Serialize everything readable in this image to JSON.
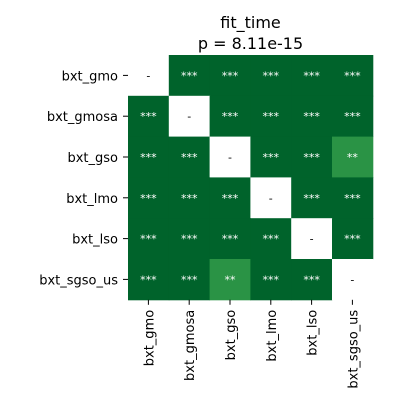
{
  "chart_data": {
    "type": "heatmap",
    "title": "fit_time",
    "subtitle": "p = 8.11e-15",
    "rows": [
      "bxt_gmo",
      "bxt_gmosa",
      "bxt_gso",
      "bxt_lmo",
      "bxt_lso",
      "bxt_sgso_us"
    ],
    "columns": [
      "bxt_gmo",
      "bxt_gmosa",
      "bxt_gso",
      "bxt_lmo",
      "bxt_lso",
      "bxt_sgso_us"
    ],
    "cells": [
      [
        "-",
        "***",
        "***",
        "***",
        "***",
        "***"
      ],
      [
        "***",
        "-",
        "***",
        "***",
        "***",
        "***"
      ],
      [
        "***",
        "***",
        "-",
        "***",
        "***",
        "**"
      ],
      [
        "***",
        "***",
        "***",
        "-",
        "***",
        "***"
      ],
      [
        "***",
        "***",
        "***",
        "***",
        "-",
        "***"
      ],
      [
        "***",
        "***",
        "**",
        "***",
        "***",
        "-"
      ]
    ],
    "legend": "none"
  },
  "colors": {
    "three_stars": "#00632b",
    "two_stars": "#2a9345",
    "diagonal": "#ffffff",
    "cell_text_dark_bg": "#ffffff",
    "cell_text_light_bg": "#000000"
  }
}
